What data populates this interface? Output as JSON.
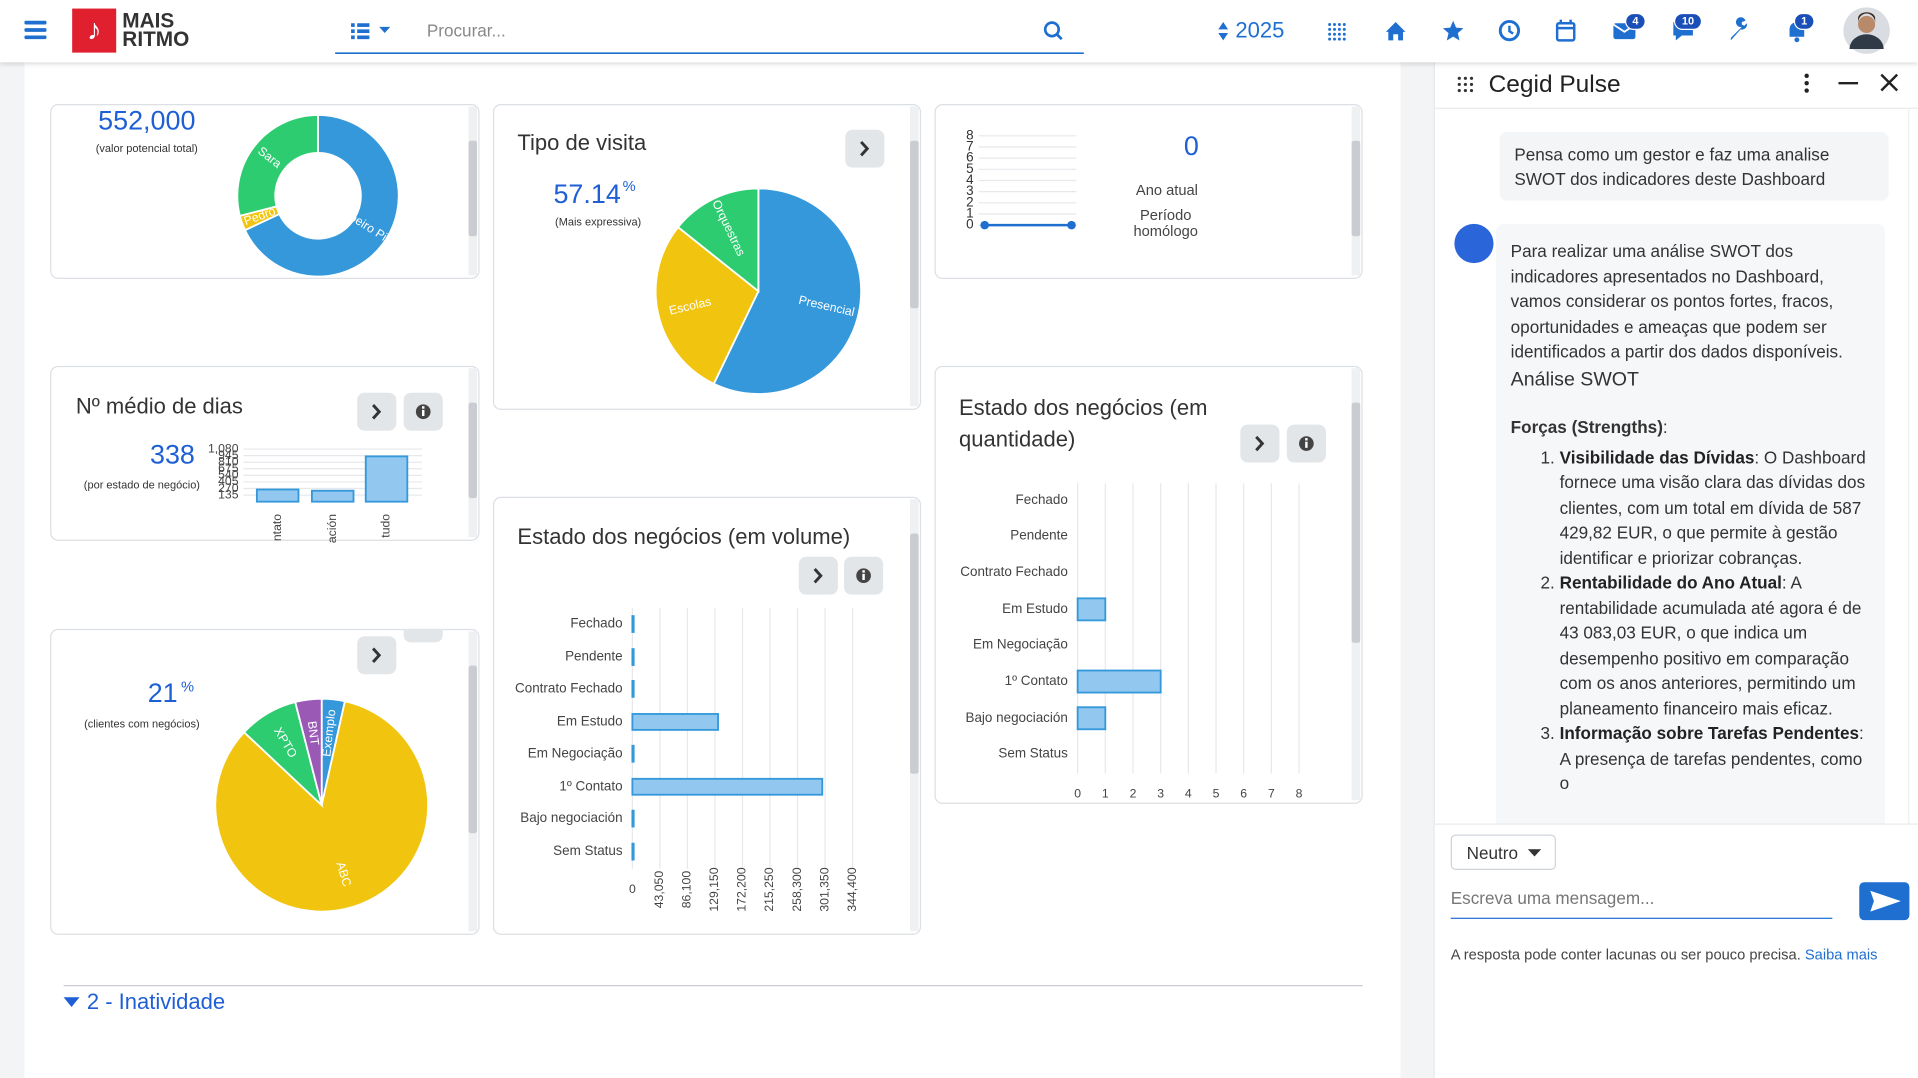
{
  "header": {
    "logo_top": "MAIS",
    "logo_bottom": "RITMO",
    "search_placeholder": "Procurar...",
    "year": "2025",
    "badges": [
      "4",
      "10",
      "1"
    ]
  },
  "widgets": {
    "potential": {
      "value": "552,000",
      "caption": "(valor potencial total)",
      "chart_data": {
        "type": "donut",
        "categories": [
          "Ribeiro Pinto",
          "Pedro",
          "Sara"
        ],
        "values": [
          68,
          3,
          29
        ],
        "colors": [
          "#3498db",
          "#f1c40f",
          "#2ecc71"
        ]
      }
    },
    "visit": {
      "title": "Tipo de visita",
      "value": "57.14",
      "unit": "%",
      "caption": "(Mais expressiva)",
      "chart_data": {
        "type": "pie",
        "categories": [
          "Presencial",
          "Escolas",
          "Orquestras"
        ],
        "values": [
          57.14,
          28.57,
          14.29
        ],
        "colors": [
          "#3498db",
          "#f1c40f",
          "#2ecc71"
        ]
      }
    },
    "year": {
      "value": "0",
      "label_current": "Ano atual",
      "label_previous": "Período homólogo",
      "chart_data": {
        "type": "line",
        "categories": [
          null,
          null
        ],
        "values": [
          0,
          0
        ],
        "color": "#1f6fd1",
        "ylim": [
          0,
          8
        ],
        "yticks": [
          0,
          1,
          2,
          3,
          4,
          5,
          6,
          7,
          8
        ],
        "grid": true
      }
    },
    "days": {
      "title": "Nº médio de dias",
      "value": "338",
      "caption": "(por estado de negócio)",
      "chart_data": {
        "type": "bar",
        "categories": [
          "ntato",
          "ación",
          "tudo"
        ],
        "values": [
          250,
          225,
          930
        ],
        "color": "#92c8ef",
        "edge_color": "#3498db",
        "ylim": [
          0,
          1080
        ],
        "yticks": [
          135,
          270,
          405,
          540,
          675,
          810,
          945,
          {
            "value": 1080,
            "label": "1,080"
          }
        ],
        "grid": true
      }
    },
    "clients": {
      "value": "21",
      "unit": "%",
      "caption": "(clientes com negócios)",
      "chart_data": {
        "type": "pie",
        "categories": [
          "Exemplo",
          "ABC",
          "XPTO",
          "BNT"
        ],
        "values": [
          3.5,
          83.5,
          9,
          4
        ],
        "colors": [
          "#3498db",
          "#f1c40f",
          "#2ecc71",
          "#9b59b6"
        ]
      }
    },
    "volume": {
      "title": "Estado dos negócios (em volume)",
      "chart_data": {
        "type": "hbar",
        "categories": [
          "Fechado",
          "Pendente",
          "Contrato Fechado",
          "Em Estudo",
          "Em Negociação",
          "1º Contato",
          "Bajo negociación",
          "Sem Status"
        ],
        "values": [
          2000,
          2000,
          2000,
          134000,
          2000,
          297000,
          2000,
          2000
        ],
        "color": "#92c8ef",
        "edge_color": "#3498db",
        "xlim": [
          0,
          344400
        ],
        "xticks": [
          0,
          {
            "value": 43050,
            "label": "43,050"
          },
          {
            "value": 86100,
            "label": "86,100"
          },
          {
            "value": 129150,
            "label": "129,150"
          },
          {
            "value": 172200,
            "label": "172,200"
          },
          {
            "value": 215250,
            "label": "215,250"
          },
          {
            "value": 258300,
            "label": "258,300"
          },
          {
            "value": 301350,
            "label": "301,350"
          },
          {
            "value": 344400,
            "label": "344,400"
          }
        ],
        "grid": true
      }
    },
    "quantity": {
      "title": "Estado dos negócios (em quantidade)",
      "chart_data": {
        "type": "hbar",
        "categories": [
          "Fechado",
          "Pendente",
          "Contrato Fechado",
          "Em Estudo",
          "Em Negociação",
          "1º Contato",
          "Bajo negociación",
          "Sem Status"
        ],
        "values": [
          0,
          0,
          0,
          1,
          0,
          3,
          1,
          0
        ],
        "color": "#92c8ef",
        "edge_color": "#3498db",
        "xlim": [
          0,
          8
        ],
        "xticks": [
          0,
          1,
          2,
          3,
          4,
          5,
          6,
          7,
          8
        ],
        "grid": true
      }
    }
  },
  "section": {
    "title": "2 - Inatividade"
  },
  "pulse": {
    "title": "Cegid Pulse",
    "user_message": "Pensa como um gestor e faz uma analise SWOT dos indicadores deste Dashboard",
    "reply_intro": "Para realizar uma análise SWOT dos indicadores apresentados no Dashboard, vamos considerar os pontos fortes, fracos, oportunidades e ameaças que podem ser identificados a partir dos dados disponíveis.",
    "reply_heading": "Análise SWOT",
    "strengths_label": "Forças (Strengths)",
    "strengths_suffix": ":",
    "strengths": [
      {
        "title": "Visibilidade das Dívidas",
        "text": ": O Dashboard fornece uma visão clara das dívidas dos clientes, com um total em dívida de 587 429,82 EUR, o que permite à gestão identificar e priorizar cobranças."
      },
      {
        "title": "Rentabilidade do Ano Atual",
        "text": ": A rentabilidade acumulada até agora é de 43 083,03 EUR, o que indica um desempenho positivo em comparação com os anos anteriores, permitindo um planeamento financeiro mais eficaz."
      },
      {
        "title": "Informação sobre Tarefas Pendentes",
        "text": ": A presença de tarefas pendentes, como o"
      }
    ],
    "tone": "Neutro",
    "input_placeholder": "Escreva uma mensagem...",
    "disclaimer": "A resposta pode conter lacunas ou ser pouco precisa.",
    "learn_more": "Saiba mais"
  }
}
